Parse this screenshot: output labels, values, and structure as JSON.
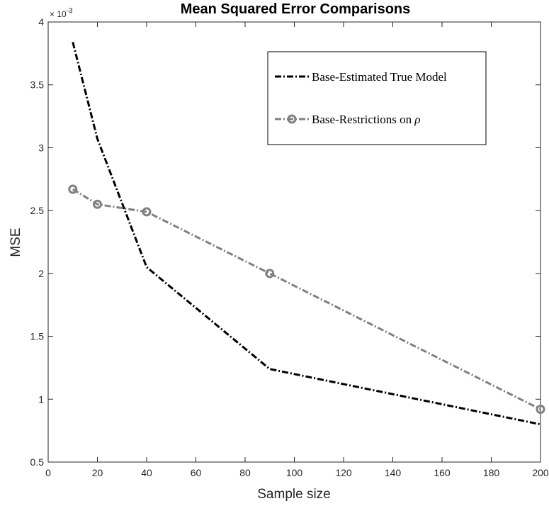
{
  "chart_data": {
    "type": "line",
    "title": "Mean Squared Error Comparisons",
    "xlabel": "Sample size",
    "ylabel": "MSE",
    "y_exponent_base": "× 10",
    "y_exponent_power": "-3",
    "xlim": [
      0,
      200
    ],
    "ylim": [
      0.5,
      4
    ],
    "x_ticks": [
      0,
      20,
      40,
      60,
      80,
      100,
      120,
      140,
      160,
      180,
      200
    ],
    "y_ticks": [
      0.5,
      1,
      1.5,
      2,
      2.5,
      3,
      3.5,
      4
    ],
    "y_tick_labels": [
      "0.5",
      "1",
      "1.5",
      "2",
      "2.5",
      "3",
      "3.5",
      "4"
    ],
    "grid": false,
    "legend_position": "top-right",
    "legend_line_1": "Base-Estimated True Model",
    "legend_line_2_prefix": "Base-Restrictions on ",
    "legend_line_2_symbol": "ρ",
    "series": [
      {
        "name": "Base-Estimated True Model",
        "color": "#000000",
        "linestyle": "dash-dot",
        "marker": "none",
        "x": [
          10,
          20,
          40,
          90,
          200
        ],
        "y": [
          3.84,
          3.07,
          2.05,
          1.24,
          0.8
        ]
      },
      {
        "name": "Base-Restrictions on ρ",
        "color": "#808080",
        "linestyle": "dash-dot",
        "marker": "circle",
        "x": [
          10,
          20,
          40,
          90,
          200
        ],
        "y": [
          2.67,
          2.55,
          2.49,
          2.0,
          0.92
        ]
      }
    ]
  }
}
